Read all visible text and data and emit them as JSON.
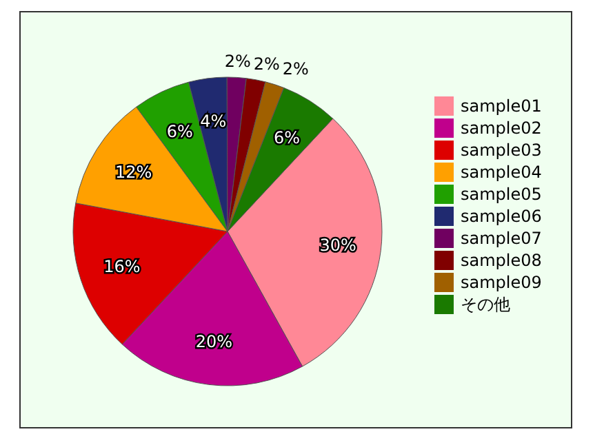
{
  "chart_data": {
    "type": "pie",
    "categories": [
      "sample01",
      "sample02",
      "sample03",
      "sample04",
      "sample05",
      "sample06",
      "sample07",
      "sample08",
      "sample09",
      "その他"
    ],
    "values": [
      30,
      20,
      16,
      12,
      6,
      4,
      2,
      2,
      2,
      6
    ],
    "value_labels": [
      "30%",
      "20%",
      "16%",
      "12%",
      "6%",
      "4%",
      "2%",
      "2%",
      "2%",
      "6%"
    ],
    "colors": [
      "#ff8896",
      "#c0008c",
      "#dd0000",
      "#ffa000",
      "#20a000",
      "#202a70",
      "#700060",
      "#800000",
      "#a06000",
      "#1a7a00"
    ],
    "legend": "right"
  }
}
